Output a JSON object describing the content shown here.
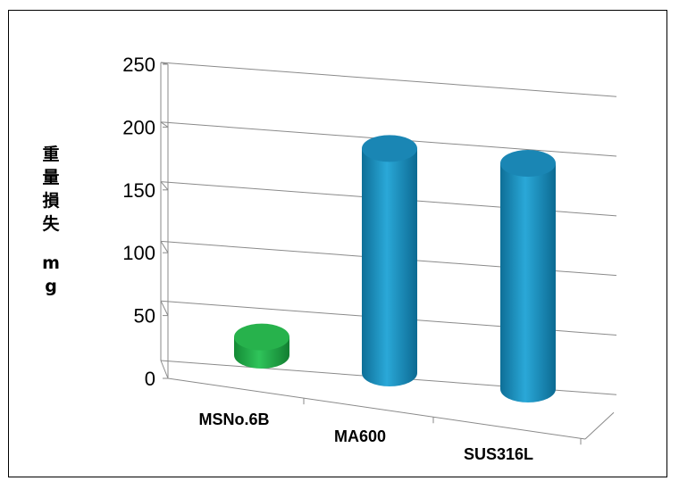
{
  "chart_data": {
    "type": "bar",
    "style": "3d-cylinder",
    "categories": [
      "MSNo.6B",
      "MA600",
      "SUS316L"
    ],
    "series": [
      {
        "values": [
          15,
          185,
          186
        ],
        "colors": [
          "#21a94a",
          "#1e90c4",
          "#1e90c4"
        ]
      }
    ],
    "ylabel_chars": [
      "重",
      "量",
      "損",
      "失",
      "m",
      "g"
    ],
    "yticks": [
      "0",
      "50",
      "100",
      "150",
      "200",
      "250"
    ],
    "ylim": [
      0,
      250
    ],
    "grid": true,
    "legend": "none"
  }
}
